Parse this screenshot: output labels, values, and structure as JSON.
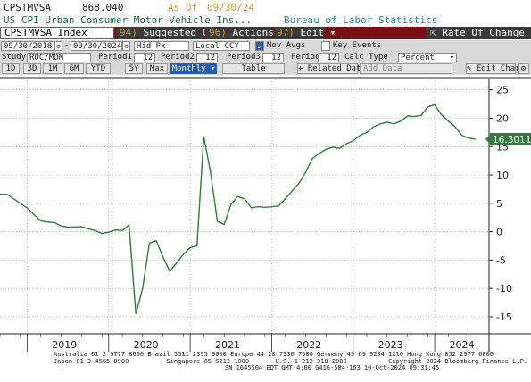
{
  "header": {
    "ticker": "CPSTMVSA",
    "value": "868.040",
    "asof_label": "As Of",
    "asof_date": "09/30/24",
    "title": "US CPI Urban Consumer Motor Vehicle Ins...",
    "source": "Bureau of Labor Statistics"
  },
  "toolbar1": {
    "security": "CPSTMVSA Index",
    "suggested_num": "94)",
    "suggested": "Suggested Charts",
    "actions_num": "96)",
    "actions": "Actions",
    "edit_num": "97)",
    "edit": "Edit",
    "rate_of_change": "Rate Of Change"
  },
  "toolbar2": {
    "start_date": "09/30/2018",
    "end_date": "09/30/2024",
    "field": "Hid Px",
    "currency": "Local CCY",
    "mov_avgs": "Mov Avgs",
    "key_events": "Key Events"
  },
  "toolbar3": {
    "study_label": "Study",
    "study_value": "ROC/MOM",
    "p1_label": "Period1",
    "p1_value": "12",
    "p2_label": "Period2",
    "p2_value": "12",
    "p3_label": "Period3",
    "p3_value": "12",
    "p4_label": "Period4",
    "p4_value": "12",
    "calc_label": "Calc Type",
    "calc_value": "Percent"
  },
  "toolbar4": {
    "ranges": [
      "1D",
      "3D",
      "1M",
      "6M",
      "YTD",
      "5Y",
      "Max"
    ],
    "frequency": "Monthly",
    "table": "Table",
    "related": "Related Dat",
    "add_data": "Add Data",
    "edit_chart": "Edit Chart"
  },
  "colors": {
    "line": "#2e7d3b",
    "accent_orange": "#d7962e",
    "dark_red": "#7b0f14",
    "bar_gray": "#d9d9d9",
    "button_dark": "#3a3a3a"
  },
  "chart_data": {
    "type": "line",
    "title": "",
    "xlabel": "",
    "ylabel": "",
    "ylim": [
      -18,
      27
    ],
    "yticks": [
      -15,
      -10,
      -5,
      0,
      5,
      10,
      15,
      20,
      25
    ],
    "xticks": [
      "2019",
      "2020",
      "2021",
      "2022",
      "2023",
      "2024"
    ],
    "x_range": [
      "2018-09",
      "2024-09"
    ],
    "grid": true,
    "last_value_label": "16.3011",
    "series": [
      {
        "name": "",
        "points": [
          [
            "2018-09",
            6.6
          ],
          [
            "2018-10",
            6.6
          ],
          [
            "2018-11",
            5.8
          ],
          [
            "2018-12",
            5.0
          ],
          [
            "2019-01",
            4.2
          ],
          [
            "2019-02",
            3.0
          ],
          [
            "2019-03",
            1.9
          ],
          [
            "2019-04",
            1.7
          ],
          [
            "2019-05",
            1.6
          ],
          [
            "2019-06",
            1.0
          ],
          [
            "2019-07",
            0.8
          ],
          [
            "2019-08",
            0.8
          ],
          [
            "2019-09",
            0.9
          ],
          [
            "2019-10",
            0.5
          ],
          [
            "2019-11",
            0.2
          ],
          [
            "2019-12",
            -0.3
          ],
          [
            "2020-01",
            -0.1
          ],
          [
            "2020-02",
            0.3
          ],
          [
            "2020-03",
            0.2
          ],
          [
            "2020-04",
            1.2
          ],
          [
            "2020-05",
            -14.5
          ],
          [
            "2020-06",
            -10.0
          ],
          [
            "2020-07",
            -2.0
          ],
          [
            "2020-08",
            -1.6
          ],
          [
            "2020-09",
            -4.5
          ],
          [
            "2020-10",
            -7.0
          ],
          [
            "2020-11",
            -5.5
          ],
          [
            "2020-12",
            -4.0
          ],
          [
            "2021-01",
            -2.8
          ],
          [
            "2021-02",
            -2.5
          ],
          [
            "2021-03",
            16.8
          ],
          [
            "2021-04",
            10.5
          ],
          [
            "2021-05",
            1.8
          ],
          [
            "2021-06",
            1.3
          ],
          [
            "2021-07",
            4.8
          ],
          [
            "2021-08",
            6.2
          ],
          [
            "2021-09",
            5.8
          ],
          [
            "2021-10",
            4.2
          ],
          [
            "2021-11",
            4.4
          ],
          [
            "2021-12",
            4.3
          ],
          [
            "2022-01",
            4.4
          ],
          [
            "2022-02",
            4.5
          ],
          [
            "2022-03",
            5.8
          ],
          [
            "2022-04",
            7.2
          ],
          [
            "2022-05",
            8.5
          ],
          [
            "2022-06",
            10.5
          ],
          [
            "2022-07",
            12.9
          ],
          [
            "2022-08",
            13.8
          ],
          [
            "2022-09",
            14.5
          ],
          [
            "2022-10",
            14.9
          ],
          [
            "2022-11",
            14.7
          ],
          [
            "2022-12",
            15.5
          ],
          [
            "2023-01",
            16.0
          ],
          [
            "2023-02",
            17.0
          ],
          [
            "2023-03",
            17.5
          ],
          [
            "2023-04",
            18.5
          ],
          [
            "2023-05",
            19.0
          ],
          [
            "2023-06",
            19.3
          ],
          [
            "2023-07",
            19.0
          ],
          [
            "2023-08",
            19.5
          ],
          [
            "2023-09",
            20.4
          ],
          [
            "2023-10",
            20.3
          ],
          [
            "2023-11",
            20.5
          ],
          [
            "2023-12",
            22.0
          ],
          [
            "2024-01",
            22.4
          ],
          [
            "2024-02",
            20.6
          ],
          [
            "2024-03",
            19.5
          ],
          [
            "2024-04",
            18.5
          ],
          [
            "2024-05",
            17.0
          ],
          [
            "2024-06",
            16.5
          ],
          [
            "2024-07",
            16.3011
          ]
        ]
      }
    ]
  },
  "footer": {
    "line1": "Australia 61 2 9777 8600 Brazil 5511 2395 9000 Europe 44 20 7330 7500 Germany 49 69 9204 1210 Hong Kong 852 2977 6000",
    "line2": "Japan 81 3 4565 8900          Singapore 65 6212 1000       U.S. 1 212 318 2000           Copyright 2024 Bloomberg Finance L.P.",
    "line3": "SN 1645504 EDT  GMT-4:00 G416-584-163 10-Oct-2024 09:31:45"
  }
}
